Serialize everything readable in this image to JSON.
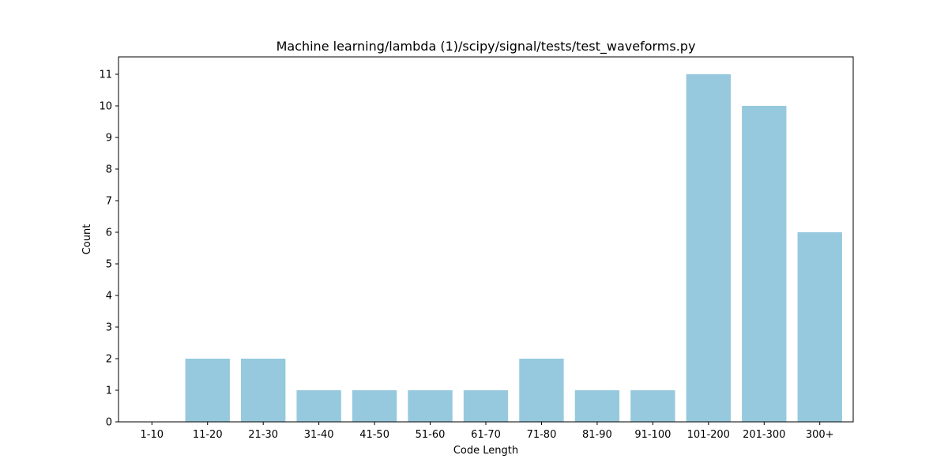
{
  "chart_data": {
    "type": "bar",
    "title": "Machine learning/lambda (1)/scipy/signal/tests/test_waveforms.py",
    "xlabel": "Code Length",
    "ylabel": "Count",
    "categories": [
      "1-10",
      "11-20",
      "21-30",
      "31-40",
      "41-50",
      "51-60",
      "61-70",
      "71-80",
      "81-90",
      "91-100",
      "101-200",
      "201-300",
      "300+"
    ],
    "values": [
      0,
      2,
      2,
      1,
      1,
      1,
      1,
      2,
      1,
      1,
      11,
      10,
      6
    ],
    "ylim": [
      0,
      11.55
    ],
    "yticks": [
      "0",
      "1",
      "2",
      "3",
      "4",
      "5",
      "6",
      "7",
      "8",
      "9",
      "10",
      "11"
    ],
    "bar_color": "#96c9dd",
    "grid": false,
    "legend": "none"
  }
}
